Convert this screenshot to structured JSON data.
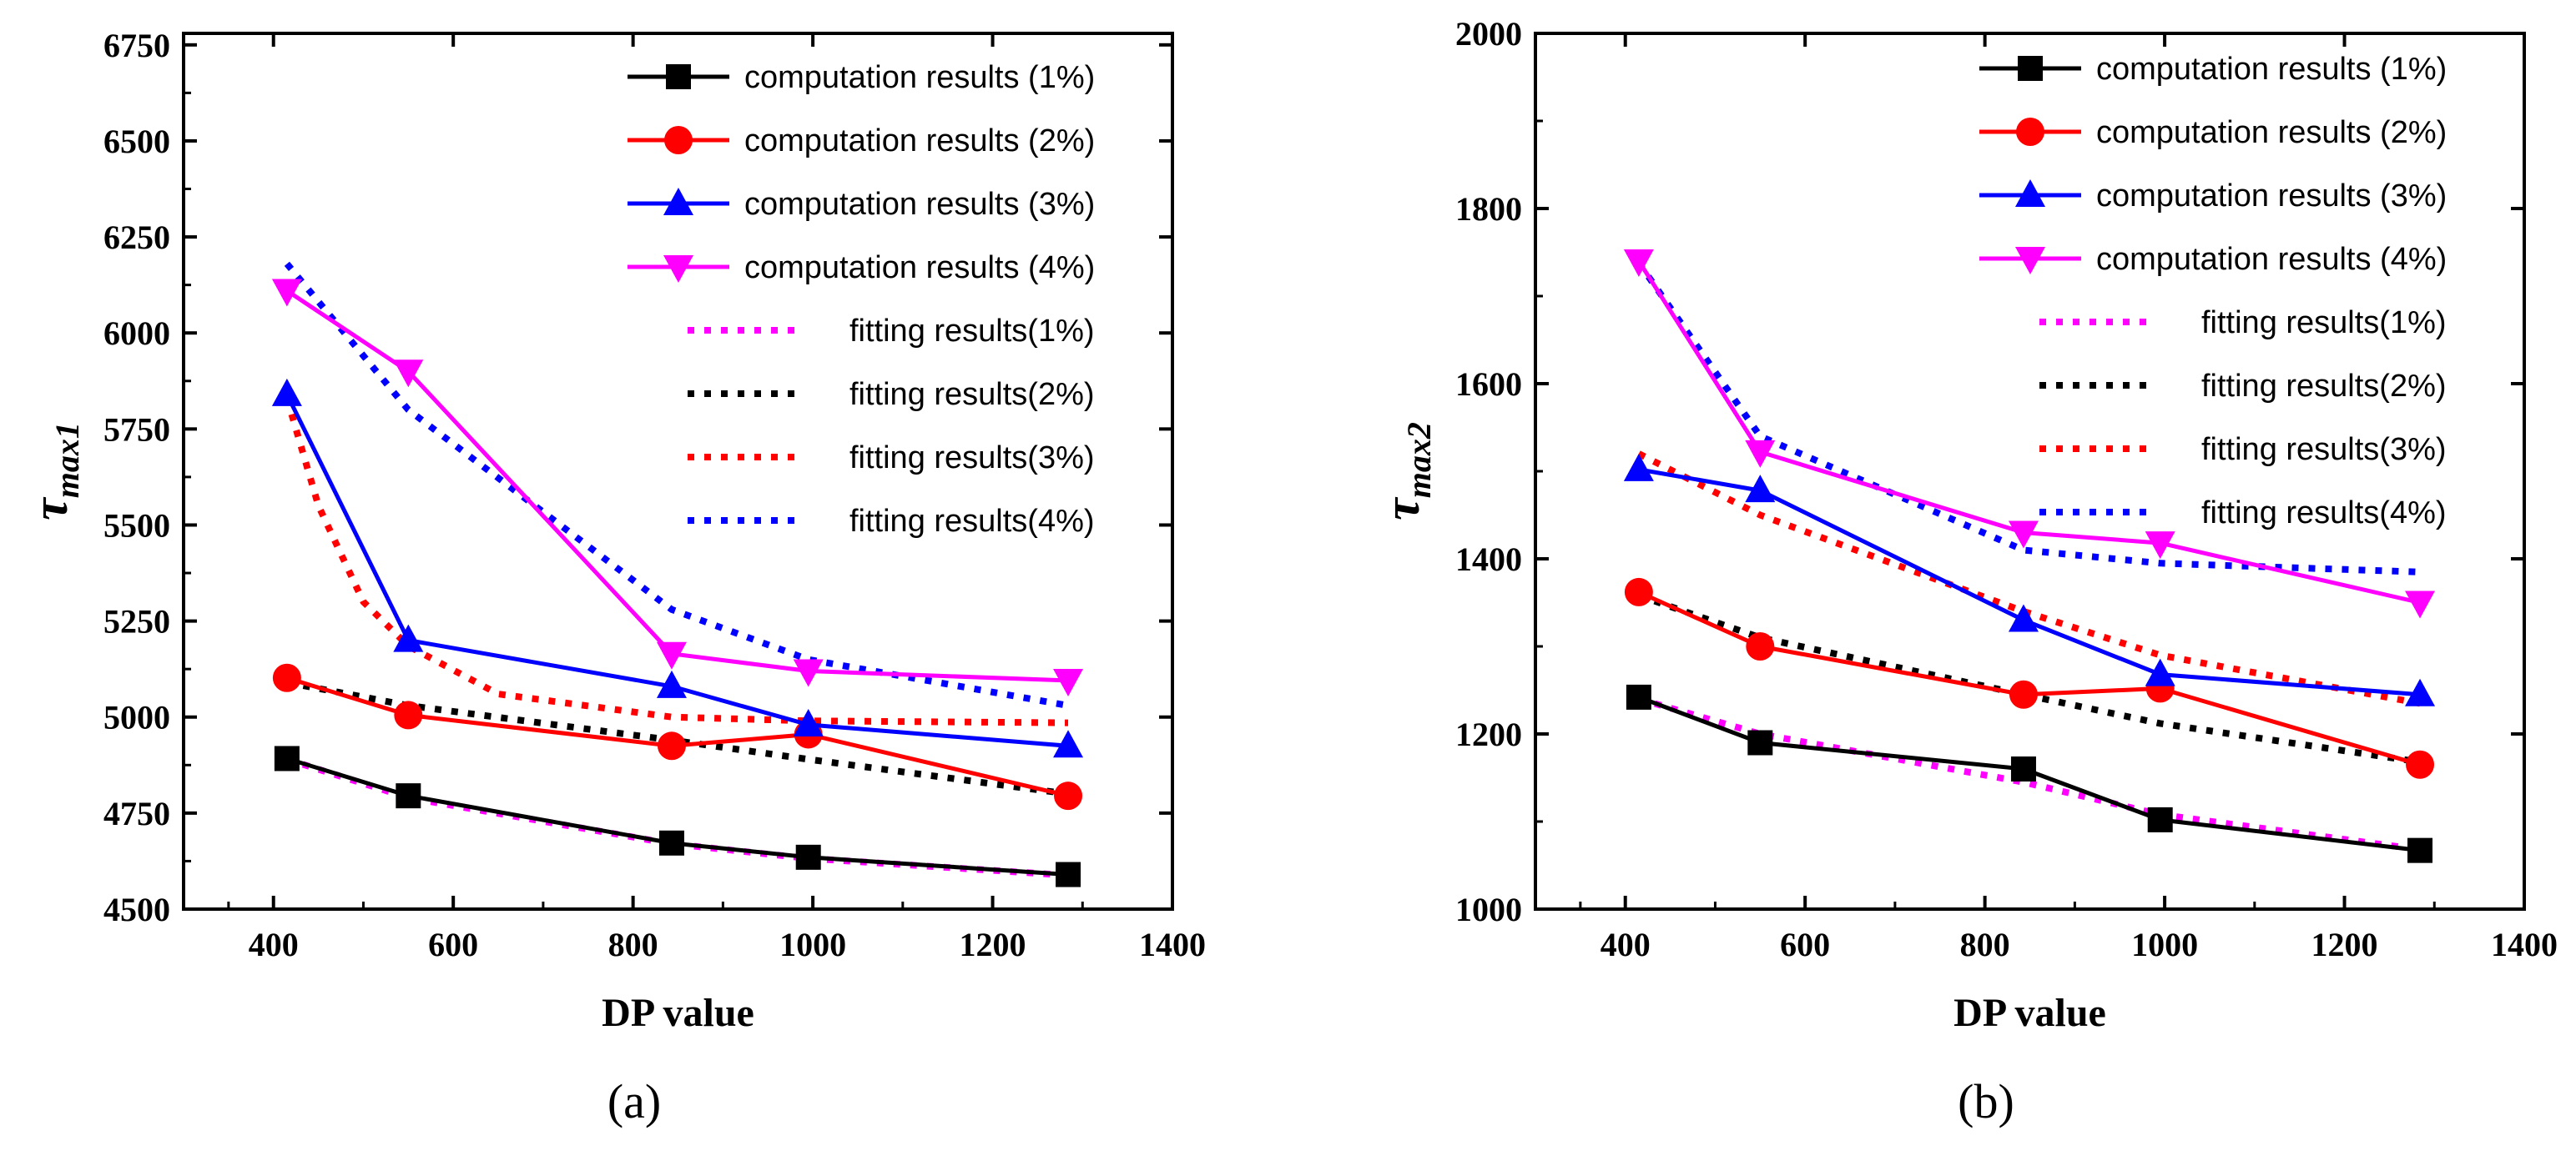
{
  "chart_data": [
    {
      "type": "line",
      "panel_label": "(a)",
      "xlabel": "DP value",
      "ylabel_symbol": "τ",
      "ylabel_sub": "max1",
      "xlim": [
        300,
        1400
      ],
      "ylim": [
        4500,
        6780
      ],
      "xticks": [
        400,
        600,
        800,
        1000,
        1200,
        1400
      ],
      "yticks": [
        4500,
        4750,
        5000,
        5250,
        5500,
        5750,
        6000,
        6250,
        6500,
        6750
      ],
      "x": [
        415,
        550,
        843,
        995,
        1284
      ],
      "series": [
        {
          "name": "computation results (1%)",
          "kind": "computation",
          "color": "#000000",
          "marker": "square",
          "values": [
            4892,
            4795,
            4672,
            4635,
            4590
          ]
        },
        {
          "name": "computation results (2%)",
          "kind": "computation",
          "color": "#ff0000",
          "marker": "circle",
          "values": [
            5102,
            5005,
            4925,
            4955,
            4795
          ]
        },
        {
          "name": "computation results (3%)",
          "kind": "computation",
          "color": "#0000ff",
          "marker": "triangle-up",
          "values": [
            5840,
            5200,
            5080,
            4980,
            4925
          ]
        },
        {
          "name": "computation results (4%)",
          "kind": "computation",
          "color": "#ff00ff",
          "marker": "triangle-down",
          "values": [
            6110,
            5900,
            5165,
            5120,
            5095
          ]
        },
        {
          "name": "fitting results(1%)",
          "kind": "fitting",
          "color": "#ff00ff",
          "x": [
            415,
            550,
            843,
            995,
            1284
          ],
          "values": [
            4890,
            4790,
            4670,
            4632,
            4588
          ]
        },
        {
          "name": "fitting results(2%)",
          "kind": "fitting",
          "color": "#000000",
          "x": [
            415,
            550,
            843,
            995,
            1284
          ],
          "values": [
            5090,
            5030,
            4940,
            4890,
            4800
          ]
        },
        {
          "name": "fitting results(3%)",
          "kind": "fitting",
          "color": "#ff0000",
          "x": [
            415,
            450,
            500,
            550,
            650,
            843,
            995,
            1284
          ],
          "values": [
            5830,
            5550,
            5300,
            5185,
            5060,
            5000,
            4990,
            4985
          ]
        },
        {
          "name": "fitting results(4%)",
          "kind": "fitting",
          "color": "#0000ff",
          "x": [
            415,
            550,
            843,
            995,
            1284
          ],
          "values": [
            6180,
            5800,
            5280,
            5150,
            5030
          ]
        }
      ]
    },
    {
      "type": "line",
      "panel_label": "(b)",
      "xlabel": "DP value",
      "ylabel_symbol": "τ",
      "ylabel_sub": "max2",
      "xlim": [
        300,
        1400
      ],
      "ylim": [
        1000,
        2000
      ],
      "xticks": [
        400,
        600,
        800,
        1000,
        1200,
        1400
      ],
      "yticks": [
        1000,
        1200,
        1400,
        1600,
        1800,
        2000
      ],
      "x": [
        415,
        550,
        843,
        995,
        1284
      ],
      "series": [
        {
          "name": "computation results (1%)",
          "kind": "computation",
          "color": "#000000",
          "marker": "square",
          "values": [
            1242,
            1190,
            1160,
            1102,
            1067
          ]
        },
        {
          "name": "computation results (2%)",
          "kind": "computation",
          "color": "#ff0000",
          "marker": "circle",
          "values": [
            1362,
            1300,
            1245,
            1252,
            1165
          ]
        },
        {
          "name": "computation results (3%)",
          "kind": "computation",
          "color": "#0000ff",
          "marker": "triangle-up",
          "values": [
            1502,
            1478,
            1330,
            1268,
            1245
          ]
        },
        {
          "name": "computation results (4%)",
          "kind": "computation",
          "color": "#ff00ff",
          "marker": "triangle-down",
          "values": [
            1740,
            1522,
            1430,
            1418,
            1350
          ]
        },
        {
          "name": "fitting results(1%)",
          "kind": "fitting",
          "color": "#ff00ff",
          "x": [
            415,
            550,
            843,
            995,
            1284
          ],
          "values": [
            1240,
            1200,
            1145,
            1108,
            1068
          ]
        },
        {
          "name": "fitting results(2%)",
          "kind": "fitting",
          "color": "#000000",
          "x": [
            415,
            550,
            843,
            995,
            1284
          ],
          "values": [
            1358,
            1310,
            1245,
            1212,
            1168
          ]
        },
        {
          "name": "fitting results(3%)",
          "kind": "fitting",
          "color": "#ff0000",
          "x": [
            415,
            550,
            843,
            995,
            1284
          ],
          "values": [
            1520,
            1450,
            1340,
            1290,
            1235
          ]
        },
        {
          "name": "fitting results(4%)",
          "kind": "fitting",
          "color": "#0000ff",
          "x": [
            415,
            550,
            843,
            995,
            1284
          ],
          "values": [
            1738,
            1540,
            1410,
            1395,
            1385
          ]
        }
      ]
    }
  ]
}
